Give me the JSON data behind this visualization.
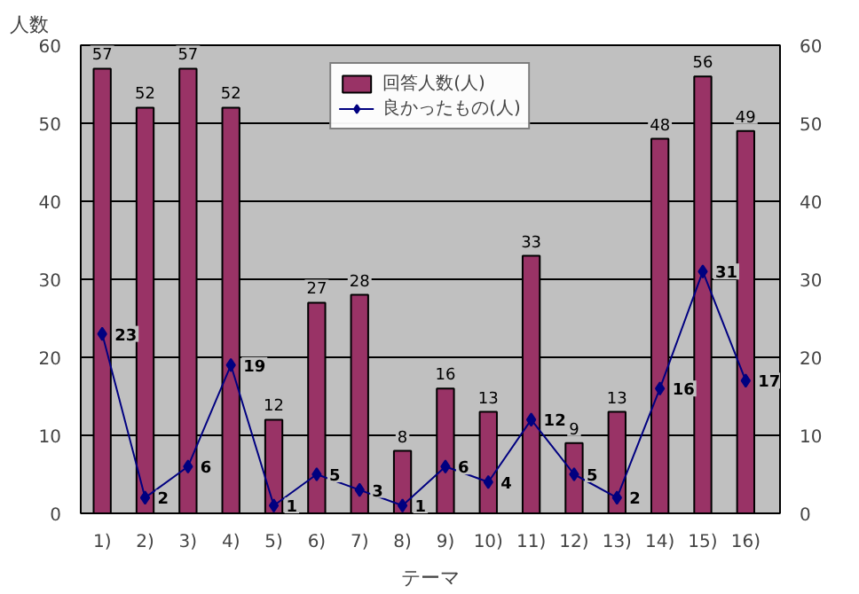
{
  "chart_data": {
    "type": "bar",
    "xlabel": "テーマ",
    "ylabel": "人数",
    "categories": [
      "1)",
      "2)",
      "3)",
      "4)",
      "5)",
      "6)",
      "7)",
      "8)",
      "9)",
      "10)",
      "11)",
      "12)",
      "13)",
      "14)",
      "15)",
      "16)"
    ],
    "series": [
      {
        "name": "回答人数(人)",
        "color": "#993366",
        "values": [
          57,
          52,
          57,
          52,
          12,
          27,
          28,
          8,
          16,
          13,
          33,
          9,
          13,
          48,
          56,
          49
        ]
      },
      {
        "name": "良かったもの(人)",
        "type": "line",
        "color": "#000080",
        "marker": "diamond",
        "values": [
          23,
          2,
          6,
          19,
          1,
          5,
          3,
          1,
          6,
          4,
          12,
          5,
          2,
          16,
          31,
          17
        ]
      }
    ],
    "ylim": [
      0,
      60
    ],
    "yticks": [
      0,
      10,
      20,
      30,
      40,
      50,
      60
    ],
    "y2lim": [
      0,
      60
    ],
    "y2ticks": [
      0,
      10,
      20,
      30,
      40,
      50,
      60
    ],
    "grid": "y",
    "legend": "top",
    "data_labels": true
  }
}
